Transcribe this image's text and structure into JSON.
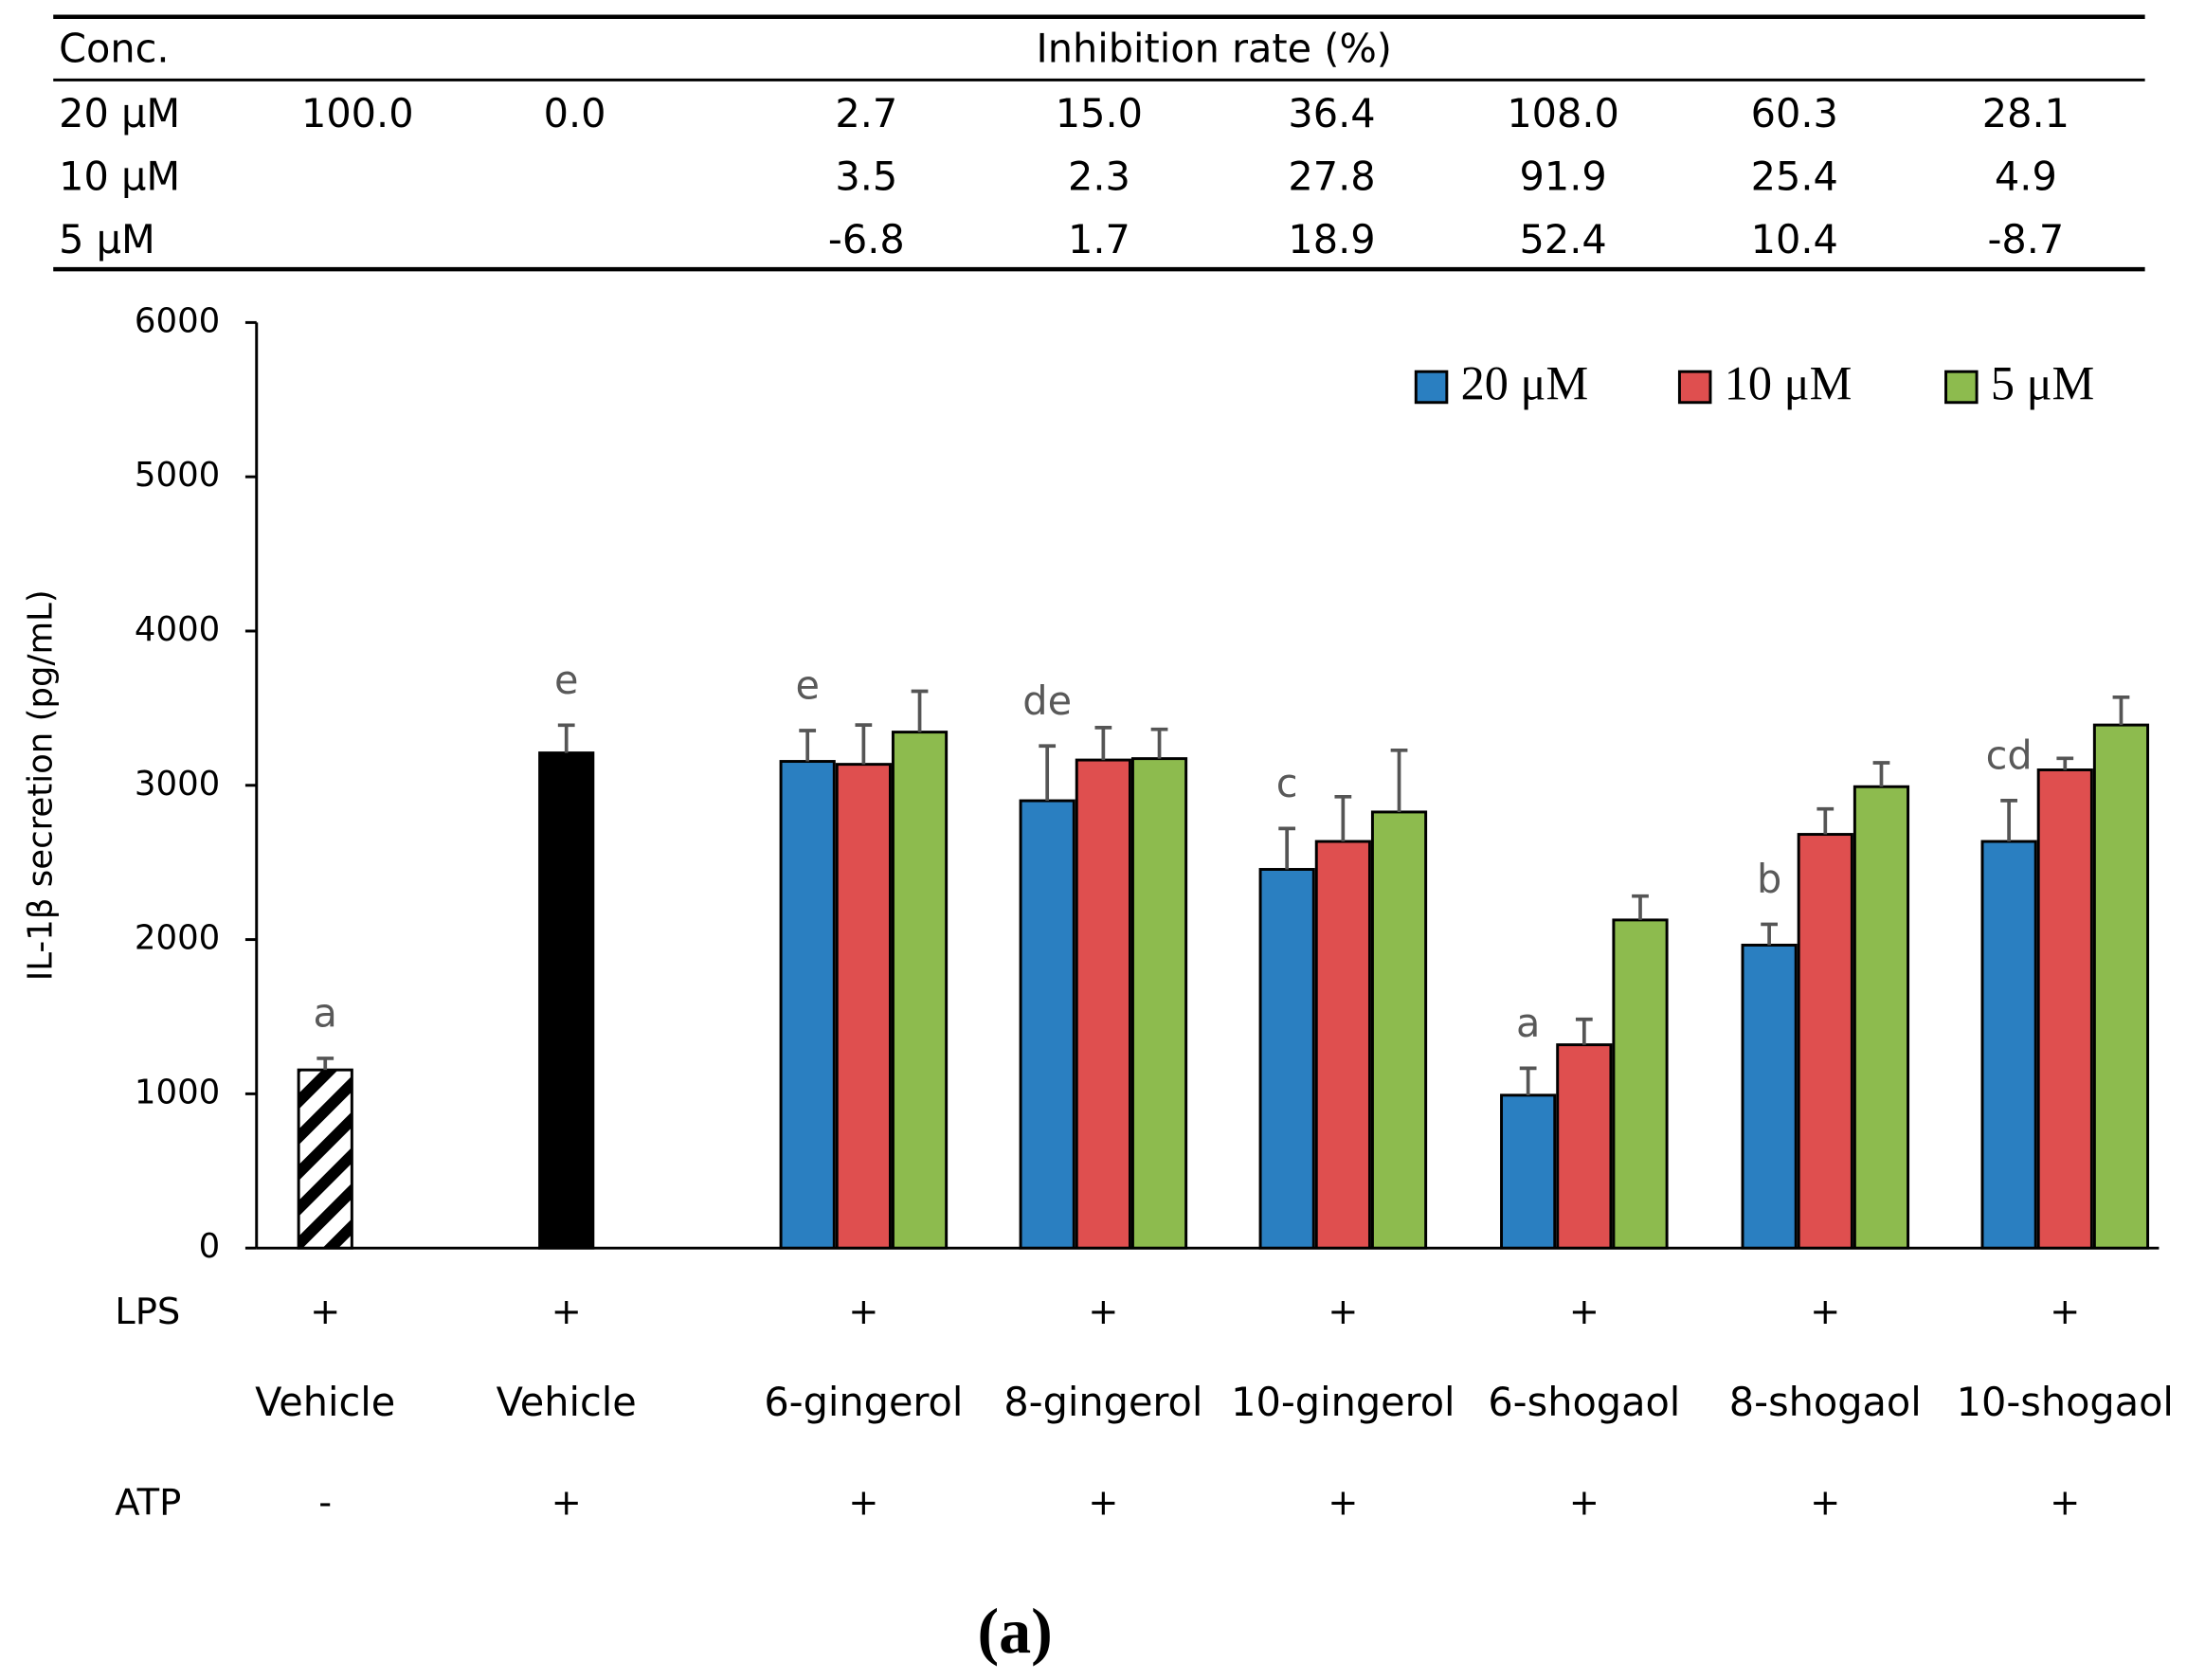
{
  "table": {
    "header": [
      "Conc.",
      "Inhibition rate (%)"
    ],
    "rows": [
      {
        "label": "20 μM",
        "values": [
          "100.0",
          "0.0",
          "2.7",
          "15.0",
          "36.4",
          "108.0",
          "60.3",
          "28.1"
        ]
      },
      {
        "label": "10 μM",
        "values": [
          null,
          null,
          "3.5",
          "2.3",
          "27.8",
          "91.9",
          "25.4",
          "4.9"
        ]
      },
      {
        "label": "5 μM",
        "values": [
          null,
          null,
          "-6.8",
          "1.7",
          "18.9",
          "52.4",
          "10.4",
          "-8.7"
        ]
      }
    ]
  },
  "chart_data": {
    "type": "bar",
    "y_label": "IL-1β secretion (pg/mL)",
    "categories": [
      "Vehicle",
      "Vehicle",
      "6-gingerol",
      "8-gingerol",
      "10-gingerol",
      "6-shogaol",
      "8-shogaol",
      "10-shogaol"
    ],
    "rows": [
      {
        "label": "LPS",
        "values": [
          "+",
          "+",
          "+",
          "+",
          "+",
          "+",
          "+",
          "+"
        ]
      },
      {
        "label": "ATP",
        "values": [
          "-",
          "+",
          "+",
          "+",
          "+",
          "+",
          "+",
          "+"
        ]
      }
    ],
    "control": {
      "values": [
        1155,
        3210,
        null,
        null,
        null,
        null,
        null,
        null
      ],
      "errors": [
        75,
        180,
        null,
        null,
        null,
        null,
        null,
        null
      ],
      "fills": [
        "hatch",
        "#000000"
      ]
    },
    "series": [
      {
        "name": "20 μM",
        "color": "#2a7fc1",
        "values": [
          null,
          null,
          3155,
          2900,
          2455,
          991,
          1964,
          2636
        ],
        "errors": [
          null,
          null,
          200,
          355,
          265,
          175,
          135,
          265
        ]
      },
      {
        "name": "10 μM",
        "color": "#df4f4f",
        "values": [
          null,
          null,
          3136,
          3164,
          2636,
          1318,
          2682,
          3100
        ],
        "errors": [
          null,
          null,
          255,
          210,
          290,
          165,
          165,
          75
        ]
      },
      {
        "name": "5 μM",
        "color": "#8dbb4e",
        "values": [
          null,
          null,
          3345,
          3173,
          2827,
          2127,
          2991,
          3391
        ],
        "errors": [
          null,
          null,
          265,
          190,
          400,
          155,
          155,
          180
        ]
      }
    ],
    "letters": [
      "a",
      "e",
      "e",
      "de",
      "c",
      "a",
      "b",
      "cd"
    ],
    "ylim": [
      0,
      6000
    ],
    "yticks": [
      0,
      1000,
      2000,
      3000,
      4000,
      5000,
      6000
    ],
    "panel_label": "(a)"
  }
}
